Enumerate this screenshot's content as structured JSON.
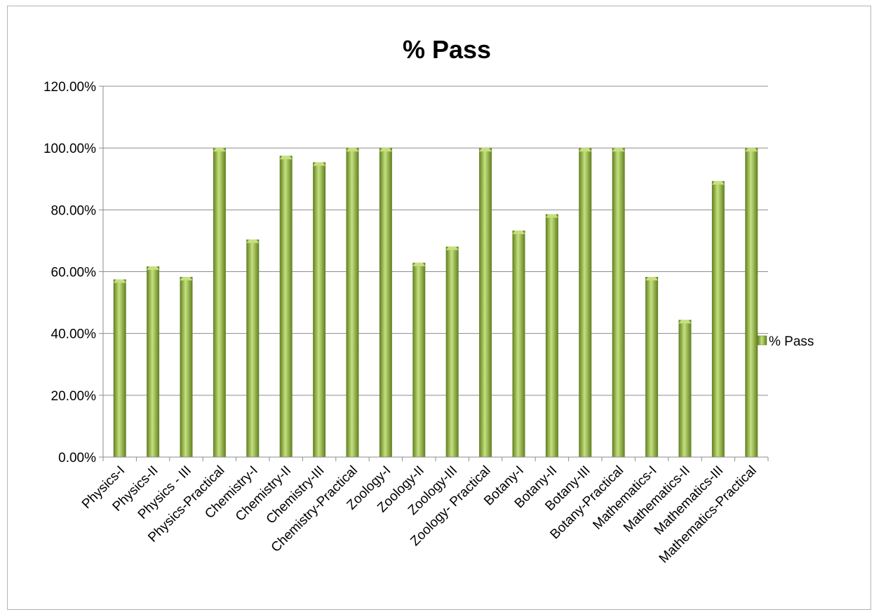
{
  "chart_data": {
    "type": "bar",
    "title": "% Pass",
    "categories": [
      "Physics-I",
      "Physics-II",
      "Physics - III",
      "Physics-Practical",
      "Chemistry-I",
      "Chemistry-II",
      "Chemistry-III",
      "Chemistry-Practical",
      "Zoology-I",
      "Zoology-II",
      "Zoology-III",
      "Zoology- Practical",
      "Botany-I",
      "Botany-II",
      "Botany-III",
      "Botany-Practical",
      "Mathematics-I",
      "Mathematics-II",
      "Mathematics-III",
      "Mathematics-Practical"
    ],
    "series": [
      {
        "name": "% Pass",
        "values": [
          57.5,
          61.7,
          58.3,
          100.0,
          70.4,
          97.5,
          95.4,
          100.0,
          100.0,
          62.9,
          68.1,
          100.0,
          73.3,
          78.6,
          100.0,
          100.0,
          58.3,
          44.4,
          89.3,
          100.0
        ]
      }
    ],
    "ylim": [
      0,
      120
    ],
    "yticks": [
      "0.00%",
      "20.00%",
      "40.00%",
      "60.00%",
      "80.00%",
      "100.00%",
      "120.00%"
    ],
    "xlabel": "",
    "ylabel": "",
    "grid": true,
    "legend": "right",
    "colors": {
      "bar": "#8db33a",
      "bar_light": "#c6e07e",
      "bar_dark": "#5f7f1f",
      "grid": "#8c8c8c"
    }
  }
}
